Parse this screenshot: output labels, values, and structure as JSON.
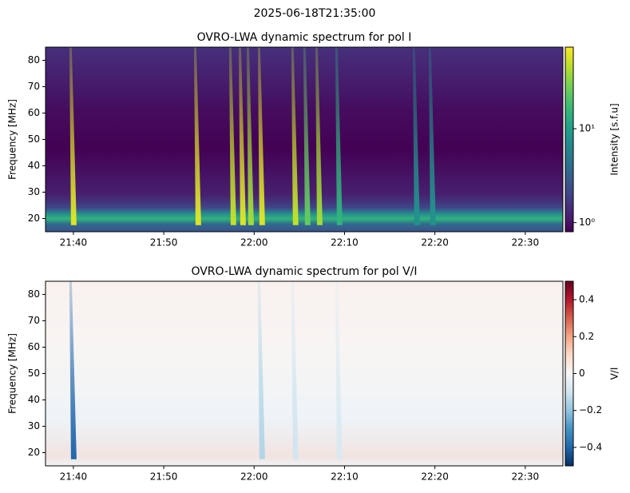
{
  "suptitle": "2025-06-18T21:35:00",
  "chart_data": [
    {
      "type": "spectrogram",
      "title": "OVRO-LWA dynamic spectrum for pol I",
      "ylabel": "Frequency [MHz]",
      "xlim": [
        "21:36:55",
        "22:34:10"
      ],
      "xticks": [
        "21:40",
        "21:50",
        "22:00",
        "22:10",
        "22:20",
        "22:30"
      ],
      "ylim": [
        15,
        85
      ],
      "yticks": [
        20,
        30,
        40,
        50,
        60,
        70,
        80
      ],
      "colorbar": {
        "label": "Intensity [s.f.u]",
        "scale": "log",
        "lim": [
          0.8,
          74
        ],
        "cmap": "viridis",
        "ticks": [
          {
            "value": 1,
            "label": "10⁰"
          },
          {
            "value": 10,
            "label": "10¹"
          }
        ]
      },
      "bursts": {
        "times": [
          "21:40:00",
          "21:53:47",
          "21:57:40",
          "21:58:44",
          "21:59:37",
          "22:00:51",
          "22:04:33",
          "22:05:53",
          "22:07:13",
          "22:09:25",
          "22:17:59",
          "22:19:45"
        ],
        "values": [
          60,
          60,
          50,
          60,
          40,
          60,
          50,
          25,
          40,
          15,
          8,
          8
        ]
      }
    },
    {
      "type": "spectrogram",
      "title": "OVRO-LWA dynamic spectrum for pol V/I",
      "ylabel": "Frequency [MHz]",
      "xlim": [
        "21:36:55",
        "22:34:10"
      ],
      "xticks": [
        "21:40",
        "21:50",
        "22:00",
        "22:10",
        "22:20",
        "22:30"
      ],
      "ylim": [
        15,
        85
      ],
      "yticks": [
        20,
        30,
        40,
        50,
        60,
        70,
        80
      ],
      "colorbar": {
        "label": "V/I",
        "scale": "linear",
        "lim": [
          -0.5,
          0.5
        ],
        "cmap": "RdBu_r",
        "ticks": [
          {
            "value": -0.4,
            "label": "−0.4"
          },
          {
            "value": -0.2,
            "label": "−0.2"
          },
          0.0,
          0.2,
          0.4
        ]
      },
      "bursts": {
        "times": [
          "21:40:00",
          "22:00:51",
          "22:04:33",
          "22:09:25"
        ],
        "values": [
          -0.4,
          -0.15,
          -0.1,
          -0.08
        ]
      }
    }
  ]
}
